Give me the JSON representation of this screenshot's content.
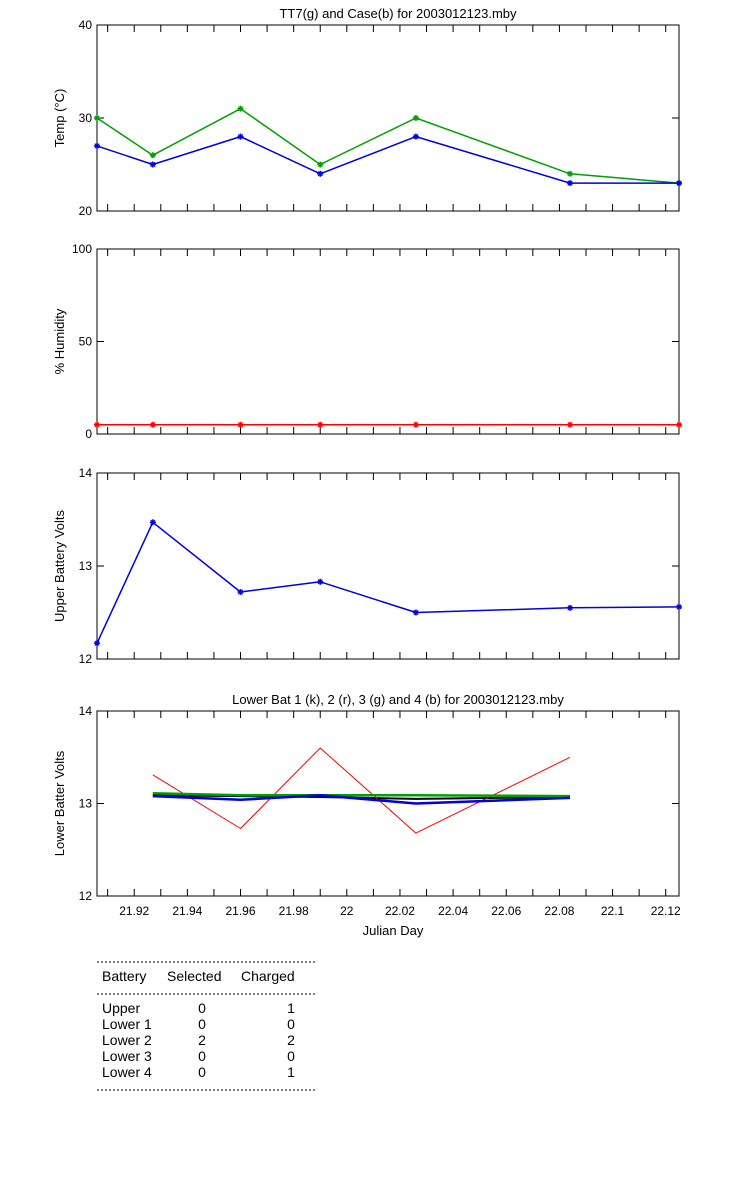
{
  "chart_data": [
    {
      "type": "line",
      "title": "TT7(g) and Case(b) for 2003012123.mby",
      "xlabel": "",
      "ylabel": "Temp  (°C)",
      "xlim": [
        21.906,
        22.125
      ],
      "ylim": [
        20,
        40
      ],
      "yticks": [
        20,
        30,
        40
      ],
      "xticks": [],
      "x": [
        21.906,
        21.927,
        21.96,
        21.99,
        22.026,
        22.084,
        22.125
      ],
      "series": [
        {
          "color": "#00a000",
          "values": [
            30,
            26,
            31,
            25,
            30,
            24,
            23
          ],
          "markers": true
        },
        {
          "color": "#0000e0",
          "values": [
            27,
            25,
            28,
            24,
            28,
            23,
            23
          ],
          "markers": true
        }
      ]
    },
    {
      "type": "line",
      "title": "",
      "xlabel": "",
      "ylabel": "% Humidity",
      "xlim": [
        21.906,
        22.125
      ],
      "ylim": [
        0,
        100
      ],
      "yticks": [
        0,
        50,
        100
      ],
      "xticks": [],
      "x": [
        21.906,
        21.927,
        21.96,
        21.99,
        22.026,
        22.084,
        22.125
      ],
      "series": [
        {
          "color": "#ff0000",
          "values": [
            5,
            5,
            5,
            5,
            5,
            5,
            5
          ],
          "markers": true
        }
      ]
    },
    {
      "type": "line",
      "title": "",
      "xlabel": "",
      "ylabel": "Upper Battery Volts",
      "xlim": [
        21.906,
        22.125
      ],
      "ylim": [
        12,
        14
      ],
      "yticks": [
        12,
        13,
        14
      ],
      "xticks": [],
      "x": [
        21.906,
        21.927,
        21.96,
        21.99,
        22.026,
        22.084,
        22.125
      ],
      "series": [
        {
          "color": "#0000e0",
          "values": [
            12.17,
            13.47,
            12.72,
            12.83,
            12.5,
            12.55,
            12.56
          ],
          "markers": true
        }
      ]
    },
    {
      "type": "line",
      "title": "Lower Bat 1 (k), 2 (r), 3 (g) and 4 (b) for 2003012123.mby",
      "xlabel": "Julian Day",
      "ylabel": "Lower Batter Volts",
      "xlim": [
        21.906,
        22.125
      ],
      "ylim": [
        12,
        14
      ],
      "yticks": [
        12,
        13,
        14
      ],
      "xticks": [
        21.92,
        21.94,
        21.96,
        21.98,
        22,
        22.02,
        22.04,
        22.06,
        22.08,
        22.1,
        22.12
      ],
      "xtick_labels": [
        "21.92",
        "21.94",
        "21.96",
        "21.98",
        "22",
        "22.02",
        "22.04",
        "22.06",
        "22.08",
        "22.1",
        "22.12"
      ],
      "x": [
        21.927,
        21.96,
        21.99,
        22.026,
        22.084
      ],
      "series": [
        {
          "color": "#000000",
          "values": [
            13.09,
            13.08,
            13.07,
            13.05,
            13.07
          ],
          "width": 2,
          "markers": false
        },
        {
          "color": "#ff0000",
          "values": [
            13.31,
            12.73,
            13.6,
            12.68,
            13.5
          ],
          "width": 1,
          "markers": false
        },
        {
          "color": "#00a000",
          "values": [
            13.11,
            13.09,
            13.09,
            13.09,
            13.08
          ],
          "width": 2.5,
          "markers": false
        },
        {
          "color": "#0000e0",
          "values": [
            13.08,
            13.04,
            13.09,
            13.0,
            13.06
          ],
          "width": 2.5,
          "markers": false
        }
      ]
    }
  ],
  "battery_table": {
    "headers": [
      "Battery",
      "Selected",
      "Charged"
    ],
    "rows": [
      [
        "Upper",
        "0",
        "1"
      ],
      [
        "Lower 1",
        "0",
        "0"
      ],
      [
        "Lower 2",
        "2",
        "2"
      ],
      [
        "Lower 3",
        "0",
        "0"
      ],
      [
        "Lower 4",
        "0",
        "1"
      ]
    ]
  }
}
